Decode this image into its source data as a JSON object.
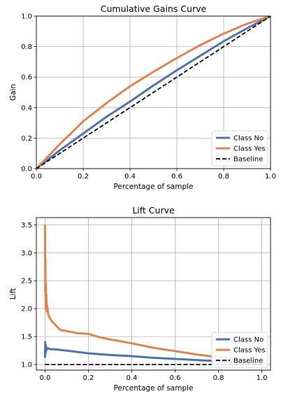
{
  "chart_data": [
    {
      "type": "line",
      "title": "Cumulative Gains Curve",
      "xlabel": "Percentage of sample",
      "ylabel": "Gain",
      "xlim": [
        0.0,
        1.0
      ],
      "ylim": [
        0.0,
        1.0
      ],
      "xticks": [
        "0.0",
        "0.2",
        "0.4",
        "0.6",
        "0.8",
        "1.0"
      ],
      "yticks": [
        "0.0",
        "0.2",
        "0.4",
        "0.6",
        "0.8",
        "1.0"
      ],
      "grid": true,
      "legend_position": "lower-right",
      "series": [
        {
          "name": "Class No",
          "color": "#4c72b0",
          "style": "solid",
          "x": [
            0.0,
            0.1,
            0.2,
            0.3,
            0.4,
            0.5,
            0.6,
            0.7,
            0.8,
            0.9,
            1.0
          ],
          "y": [
            0.0,
            0.12,
            0.23,
            0.34,
            0.44,
            0.545,
            0.645,
            0.74,
            0.835,
            0.92,
            1.0
          ]
        },
        {
          "name": "Class Yes",
          "color": "#dd8452",
          "style": "solid",
          "x": [
            0.0,
            0.05,
            0.1,
            0.15,
            0.2,
            0.3,
            0.4,
            0.5,
            0.6,
            0.7,
            0.8,
            0.9,
            1.0
          ],
          "y": [
            0.0,
            0.08,
            0.16,
            0.235,
            0.31,
            0.43,
            0.54,
            0.635,
            0.725,
            0.81,
            0.885,
            0.95,
            1.0
          ]
        },
        {
          "name": "Baseline",
          "color": "#000000",
          "style": "dashed",
          "x": [
            0.0,
            1.0
          ],
          "y": [
            0.0,
            1.0
          ]
        }
      ]
    },
    {
      "type": "line",
      "title": "Lift Curve",
      "xlabel": "Percentage of sample",
      "ylabel": "Lift",
      "xlim": [
        -0.04,
        1.04
      ],
      "ylim": [
        0.9,
        3.63
      ],
      "xticks": [
        "0.0",
        "0.2",
        "0.4",
        "0.6",
        "0.8",
        "1.0"
      ],
      "yticks": [
        "1.0",
        "1.5",
        "2.0",
        "2.5",
        "3.0",
        "3.5"
      ],
      "grid": true,
      "legend_position": "lower-right",
      "series": [
        {
          "name": "Class No",
          "color": "#4c72b0",
          "style": "solid",
          "x": [
            0.0,
            0.001,
            0.002,
            0.003,
            0.004,
            0.005,
            0.007,
            0.01,
            0.02,
            0.05,
            0.1,
            0.2,
            0.3,
            0.4,
            0.5,
            0.6,
            0.7,
            0.8,
            0.9,
            1.0
          ],
          "y": [
            1.12,
            1.4,
            1.18,
            1.35,
            1.22,
            1.32,
            1.26,
            1.3,
            1.28,
            1.27,
            1.25,
            1.2,
            1.17,
            1.15,
            1.12,
            1.1,
            1.08,
            1.06,
            1.04,
            1.0
          ]
        },
        {
          "name": "Class Yes",
          "color": "#dd8452",
          "style": "solid",
          "x": [
            0.0,
            0.001,
            0.002,
            0.003,
            0.004,
            0.005,
            0.006,
            0.008,
            0.01,
            0.015,
            0.02,
            0.03,
            0.05,
            0.07,
            0.1,
            0.15,
            0.2,
            0.25,
            0.3,
            0.4,
            0.5,
            0.6,
            0.7,
            0.8,
            0.9,
            1.0
          ],
          "y": [
            3.5,
            2.3,
            2.9,
            2.0,
            2.45,
            2.15,
            2.25,
            1.95,
            2.05,
            1.88,
            1.85,
            1.78,
            1.7,
            1.62,
            1.6,
            1.56,
            1.55,
            1.49,
            1.45,
            1.38,
            1.3,
            1.24,
            1.18,
            1.13,
            1.08,
            1.0
          ]
        },
        {
          "name": "Baseline",
          "color": "#000000",
          "style": "dashed",
          "x": [
            0.0,
            1.0
          ],
          "y": [
            1.0,
            1.0
          ]
        }
      ]
    }
  ]
}
